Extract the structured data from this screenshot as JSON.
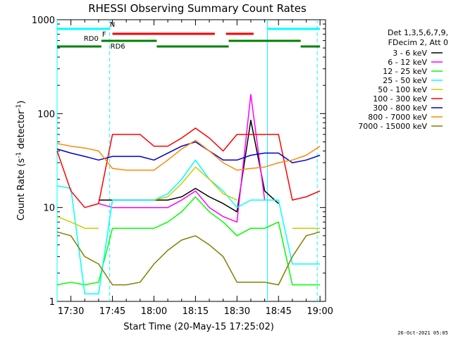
{
  "chart_data": {
    "type": "line",
    "title": "RHESSI Observing Summary Count Rates",
    "xlabel": "Start Time (20-May-15 17:25:02)",
    "ylabel": "Count Rate (s⁻¹ detector⁻¹)",
    "xlim": [
      "17:25",
      "19:02"
    ],
    "ylim": [
      1,
      1000
    ],
    "yscale": "log",
    "x_ticks": [
      "17:30",
      "17:45",
      "18:00",
      "18:15",
      "18:30",
      "18:45",
      "19:00"
    ],
    "y_ticks": [
      "1",
      "10",
      "100",
      "1000"
    ],
    "legend_header": [
      "Det 1,3,5,6,7,9,",
      "FDecim 2, Att 0"
    ],
    "legend_position": "right",
    "footer": "26-Oct-2021 05:05",
    "markers": [
      {
        "label": "N",
        "color": "#00ffff",
        "time": "17:43"
      },
      {
        "label": "F",
        "color": "#ff0000",
        "time": "17:44"
      },
      {
        "label": "RD0",
        "color": "#008000",
        "time": "17:41"
      },
      {
        "label": "RD6",
        "color": "#008000",
        "time": "17:44"
      }
    ],
    "vlines": [
      {
        "time": "17:25",
        "color": "#00ffff",
        "style": "solid"
      },
      {
        "time": "17:44",
        "color": "#00ffff",
        "style": "dashed"
      },
      {
        "time": "18:41",
        "color": "#00ffff",
        "style": "solid"
      },
      {
        "time": "18:59",
        "color": "#00ffff",
        "style": "dashed"
      }
    ],
    "flag_bars": [
      {
        "label": "N",
        "color": "#00ffff",
        "segments": [
          [
            "17:25",
            "17:44"
          ],
          [
            "18:41",
            "19:00"
          ]
        ]
      },
      {
        "label": "F",
        "color": "#ff0000",
        "segments": [
          [
            "17:45",
            "18:22"
          ],
          [
            "18:26",
            "18:36"
          ]
        ]
      },
      {
        "label": "RD0",
        "color": "#008000",
        "segments": [
          [
            "17:41",
            "18:01"
          ],
          [
            "18:27",
            "18:53"
          ]
        ]
      },
      {
        "label": "RD6",
        "color": "#008000",
        "segments": [
          [
            "17:25",
            "17:41"
          ],
          [
            "18:01",
            "18:27"
          ],
          [
            "18:53",
            "19:00"
          ]
        ]
      }
    ],
    "x": [
      "17:25",
      "17:30",
      "17:35",
      "17:40",
      "17:45",
      "17:50",
      "17:55",
      "18:00",
      "18:05",
      "18:10",
      "18:15",
      "18:20",
      "18:25",
      "18:30",
      "18:35",
      "18:40",
      "18:45",
      "18:50",
      "18:55",
      "19:00"
    ],
    "series": [
      {
        "name": "3 - 6 keV",
        "color": "#000000",
        "values": [
          null,
          null,
          null,
          12,
          12,
          12,
          12,
          12,
          12,
          13,
          16,
          13,
          11,
          9,
          85,
          15,
          11,
          null,
          null,
          null
        ]
      },
      {
        "name": "6 - 12 keV",
        "color": "#ff00ff",
        "values": [
          null,
          null,
          null,
          11,
          10,
          10,
          10,
          10,
          10,
          12,
          15,
          10,
          8,
          7,
          160,
          12,
          null,
          null,
          null,
          null
        ]
      },
      {
        "name": "12 - 25 keV",
        "color": "#00ff00",
        "values": [
          1.5,
          1.6,
          1.5,
          1.6,
          6,
          6,
          6,
          6,
          7,
          9,
          13,
          9,
          7,
          5,
          6,
          6,
          7,
          1.5,
          1.5,
          1.5
        ]
      },
      {
        "name": "25 - 50 keV",
        "color": "#00ffff",
        "values": [
          17,
          16,
          1.2,
          1.2,
          12,
          12,
          12,
          12,
          14,
          20,
          32,
          20,
          15,
          10,
          12,
          12,
          12,
          2.5,
          2.5,
          2.5
        ]
      },
      {
        "name": "50 - 100 keV",
        "color": "#cccc00",
        "values": [
          8,
          7,
          6,
          6,
          null,
          null,
          null,
          12,
          13,
          18,
          27,
          20,
          14,
          12,
          null,
          null,
          null,
          6,
          6,
          6
        ]
      },
      {
        "name": "100 - 300 keV",
        "color": "#ff0000",
        "values": [
          40,
          15,
          10,
          11,
          60,
          60,
          60,
          45,
          45,
          55,
          70,
          55,
          40,
          60,
          60,
          60,
          60,
          12,
          13,
          15
        ]
      },
      {
        "name": "300 - 800 keV",
        "color": "#0000cc",
        "values": [
          42,
          38,
          35,
          32,
          35,
          35,
          35,
          32,
          38,
          45,
          50,
          40,
          32,
          32,
          36,
          38,
          38,
          30,
          32,
          36
        ]
      },
      {
        "name": "800 - 7000 keV",
        "color": "#ff8800",
        "values": [
          48,
          45,
          43,
          40,
          26,
          25,
          25,
          25,
          32,
          42,
          52,
          40,
          30,
          25,
          26,
          27,
          30,
          32,
          36,
          45
        ]
      },
      {
        "name": "7000 - 15000 keV",
        "color": "#808000",
        "values": [
          5.5,
          5,
          3,
          2.5,
          1.5,
          1.5,
          1.6,
          2.5,
          3.5,
          4.5,
          5,
          4,
          3,
          1.6,
          1.6,
          1.6,
          1.5,
          3,
          5,
          5.5
        ]
      }
    ]
  }
}
